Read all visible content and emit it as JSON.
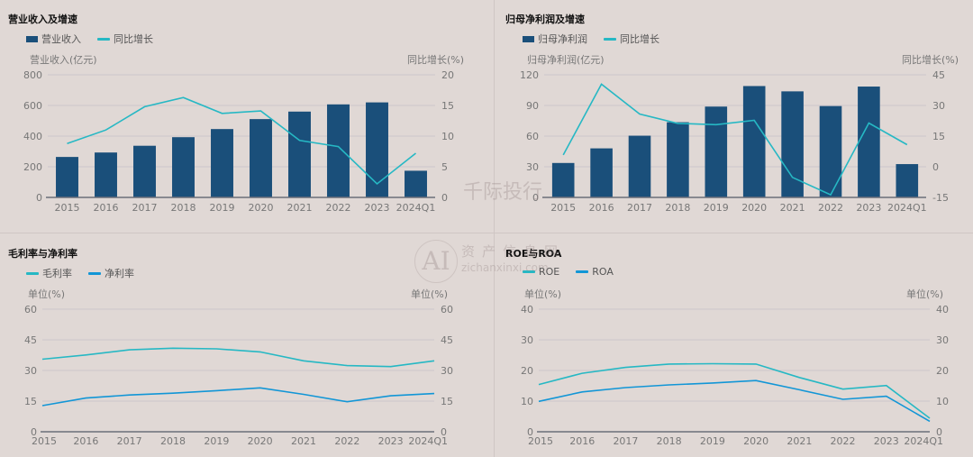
{
  "colors": {
    "bar": "#1a4f7a",
    "growth_line": "#26b8c4",
    "net_line": "#1296d6",
    "grid": "#cdc6cc",
    "axis": "#6b6f7a",
    "tick": "#777"
  },
  "watermarks": {
    "a": "千际投行",
    "b_logo": "AI",
    "b_text": "资产信息网",
    "b_url": "zichanxinxi.com"
  },
  "chart_data": [
    {
      "type": "bar+line",
      "title": "营业收入及增速",
      "categories": [
        "2015",
        "2016",
        "2017",
        "2018",
        "2019",
        "2020",
        "2021",
        "2022",
        "2023",
        "2024Q1"
      ],
      "ylabel_left": "营业收入(亿元)",
      "ylabel_right": "同比增长(%)",
      "ylim_left": [
        0,
        800
      ],
      "yticks_left": [
        0,
        200,
        400,
        600,
        800
      ],
      "ylim_right": [
        0,
        20
      ],
      "yticks_right": [
        0,
        5,
        10,
        15,
        20
      ],
      "grid": true,
      "legend": "top-left",
      "series": [
        {
          "name": "营业收入",
          "kind": "bar",
          "axis": "left",
          "values": [
            264,
            293,
            337,
            393,
            446,
            511,
            560,
            607,
            620,
            174
          ]
        },
        {
          "name": "同比增长",
          "kind": "line",
          "axis": "right",
          "values": [
            8.8,
            11.0,
            14.8,
            16.3,
            13.7,
            14.1,
            9.3,
            8.3,
            2.2,
            7.2
          ]
        }
      ]
    },
    {
      "type": "bar+line",
      "title": "归母净利润及增速",
      "categories": [
        "2015",
        "2016",
        "2017",
        "2018",
        "2019",
        "2020",
        "2021",
        "2022",
        "2023",
        "2024Q1"
      ],
      "ylabel_left": "归母净利润(亿元)",
      "ylabel_right": "同比增长(%)",
      "ylim_left": [
        0,
        120
      ],
      "yticks_left": [
        0,
        30,
        60,
        90,
        120
      ],
      "ylim_right": [
        -15,
        45
      ],
      "yticks_right": [
        -15,
        0,
        15,
        30,
        45
      ],
      "grid": true,
      "legend": "top-left",
      "series": [
        {
          "name": "归母净利润",
          "kind": "bar",
          "axis": "left",
          "values": [
            33.7,
            48.0,
            60.4,
            73.6,
            88.9,
            109.0,
            103.8,
            89.4,
            108.5,
            32.6
          ]
        },
        {
          "name": "同比增长",
          "kind": "line",
          "axis": "right",
          "values": [
            5.8,
            40.4,
            25.8,
            21.2,
            20.6,
            22.7,
            -5.2,
            -13.7,
            21.4,
            10.8
          ]
        }
      ]
    },
    {
      "type": "line",
      "title": "毛利率与净利率",
      "categories": [
        "2015",
        "2016",
        "2017",
        "2018",
        "2019",
        "2020",
        "2021",
        "2022",
        "2023",
        "2024Q1"
      ],
      "ylabel_left": "单位(%)",
      "ylabel_right": "单位(%)",
      "ylim_left": [
        0,
        60
      ],
      "yticks_left": [
        0,
        15,
        30,
        45,
        60
      ],
      "ylim_right": [
        0,
        60
      ],
      "yticks_right": [
        0,
        15,
        30,
        45,
        60
      ],
      "grid": true,
      "legend": "top-left",
      "series": [
        {
          "name": "毛利率",
          "kind": "line",
          "axis": "left",
          "color": "#26b8c4",
          "values": [
            35.5,
            37.6,
            40.1,
            40.9,
            40.6,
            39.1,
            34.7,
            32.4,
            31.9,
            34.7
          ]
        },
        {
          "name": "净利率",
          "kind": "line",
          "axis": "left",
          "color": "#1296d6",
          "values": [
            12.8,
            16.5,
            18.0,
            18.9,
            20.1,
            21.5,
            18.3,
            14.7,
            17.6,
            18.7
          ]
        }
      ]
    },
    {
      "type": "line",
      "title": "ROE与ROA",
      "categories": [
        "2015",
        "2016",
        "2017",
        "2018",
        "2019",
        "2020",
        "2021",
        "2022",
        "2023",
        "2024Q1"
      ],
      "ylabel_left": "单位(%)",
      "ylabel_right": "单位(%)",
      "ylim_left": [
        0,
        40
      ],
      "yticks_left": [
        0,
        10,
        20,
        30,
        40
      ],
      "ylim_right": [
        0,
        40
      ],
      "yticks_right": [
        0,
        10,
        20,
        30,
        40
      ],
      "grid": true,
      "legend": "top-left",
      "series": [
        {
          "name": "ROE",
          "kind": "line",
          "axis": "left",
          "color": "#26b8c4",
          "values": [
            15.4,
            19.1,
            21.0,
            22.1,
            22.2,
            22.1,
            17.7,
            13.9,
            15.1,
            4.4
          ]
        },
        {
          "name": "ROA",
          "kind": "line",
          "axis": "left",
          "color": "#1296d6",
          "values": [
            9.9,
            13.0,
            14.4,
            15.3,
            15.9,
            16.7,
            13.7,
            10.6,
            11.6,
            3.4
          ]
        }
      ]
    }
  ]
}
